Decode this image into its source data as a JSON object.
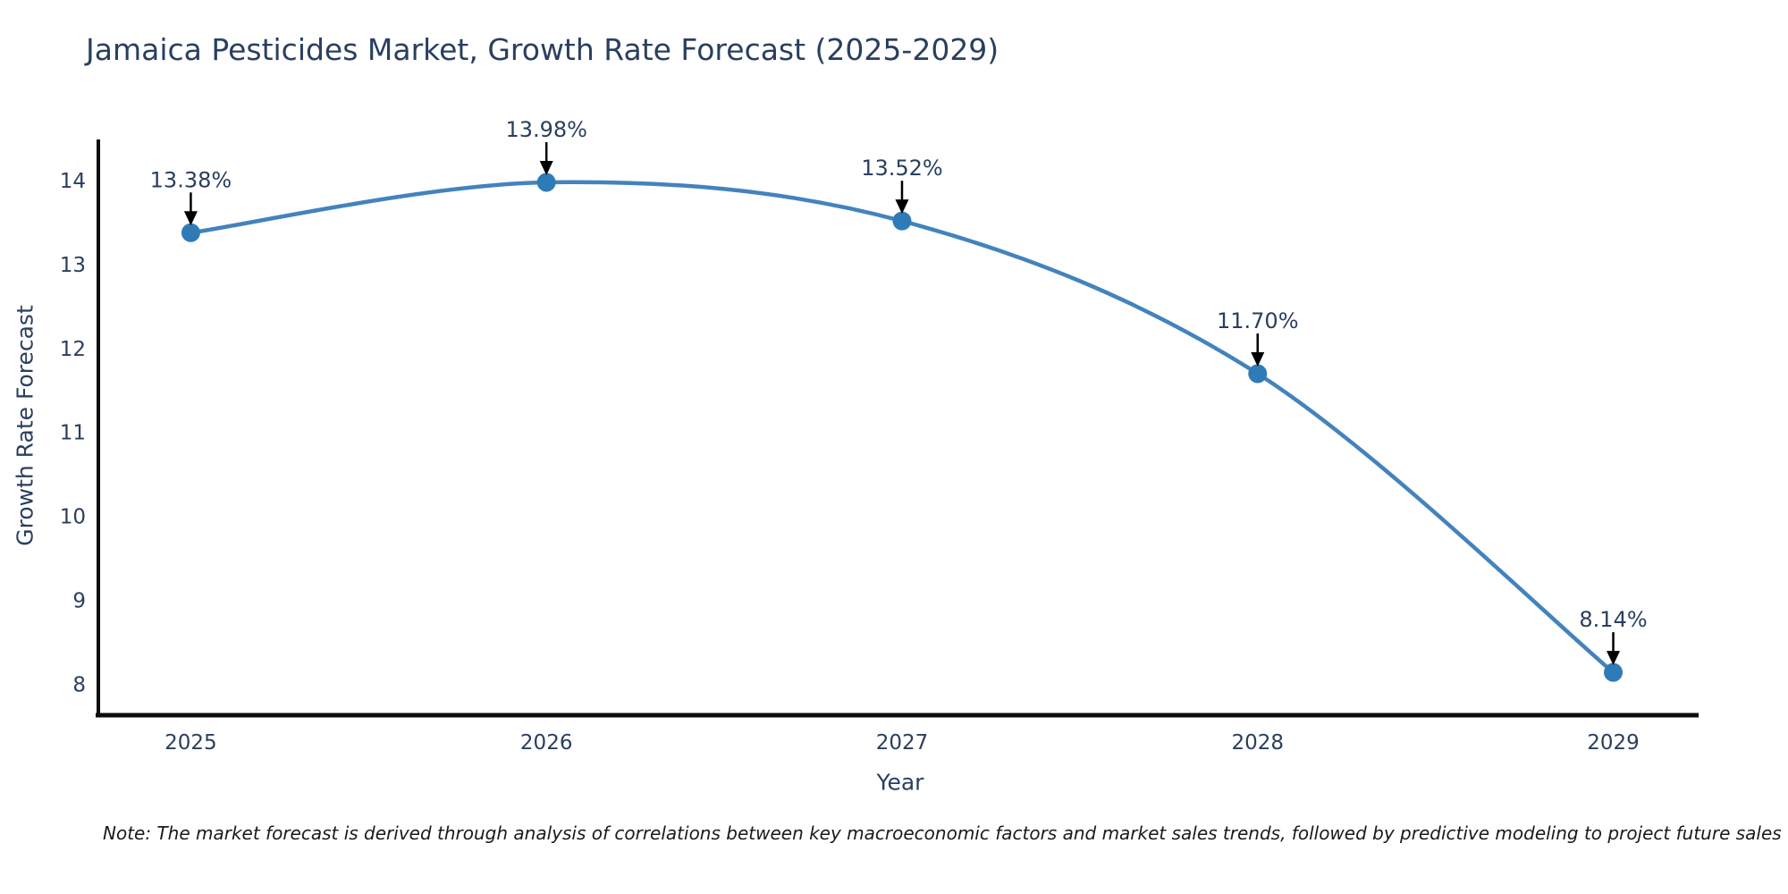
{
  "page": {
    "background": "#ffffff",
    "note": "Note: The market forecast is derived through analysis of correlations between key macroeconomic factors and market sales trends, followed by predictive modeling to project future sales"
  },
  "colors": {
    "text": "#2a3f5f",
    "axis_line": "#0d0d0d",
    "line": "#4383bd",
    "marker": "#2f7bb8",
    "arrow": "#000000",
    "note_text": "#1a1a1a"
  },
  "chart_data": {
    "type": "line",
    "title": "Jamaica Pesticides Market, Growth Rate Forecast (2025-2029)",
    "xlabel": "Year",
    "ylabel": "Growth Rate Forecast",
    "x": [
      2025,
      2026,
      2027,
      2028,
      2029
    ],
    "y": [
      13.38,
      13.98,
      13.52,
      11.7,
      8.14
    ],
    "point_labels": [
      "13.38%",
      "13.98%",
      "13.52%",
      "11.70%",
      "8.14%"
    ],
    "xtick_labels": [
      "2025",
      "2026",
      "2027",
      "2028",
      "2029"
    ],
    "ytick_values": [
      8,
      9,
      10,
      11,
      12,
      13,
      14
    ],
    "ytick_labels": [
      "8",
      "9",
      "10",
      "11",
      "12",
      "13",
      "14"
    ],
    "xlim": [
      2024.74,
      2029.24
    ],
    "ylim": [
      7.63,
      14.47
    ],
    "grid": false,
    "legend": false,
    "line_shape": "spline",
    "markers": true,
    "annotations_arrow": true
  }
}
